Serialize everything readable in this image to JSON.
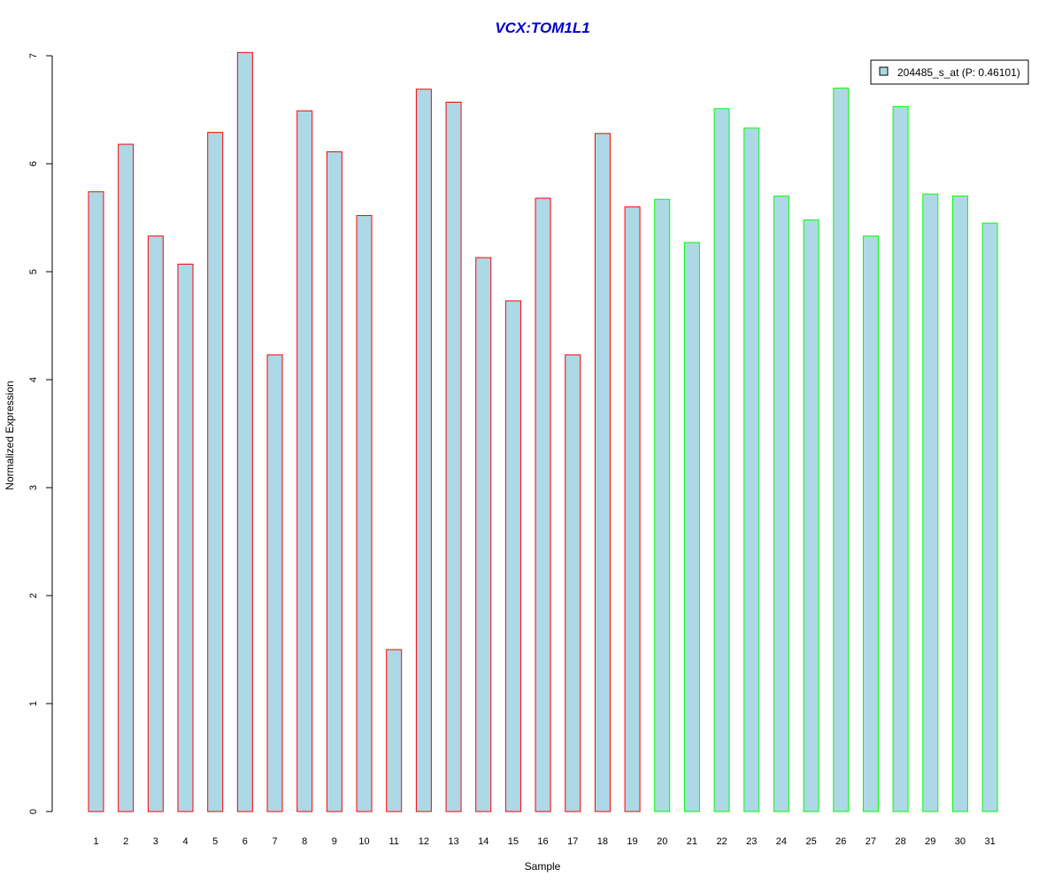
{
  "chart_data": {
    "type": "bar",
    "title": "VCX:TOM1L1",
    "xlabel": "Sample",
    "ylabel": "Normalized Expression",
    "ylim": [
      0,
      7
    ],
    "yticks": [
      0,
      1,
      2,
      3,
      4,
      5,
      6,
      7
    ],
    "grid": false,
    "legend_position": "top-right",
    "categories": [
      "1",
      "2",
      "3",
      "4",
      "5",
      "6",
      "7",
      "8",
      "9",
      "10",
      "11",
      "12",
      "13",
      "14",
      "15",
      "16",
      "17",
      "18",
      "19",
      "20",
      "21",
      "22",
      "23",
      "24",
      "25",
      "26",
      "27",
      "28",
      "29",
      "30",
      "31"
    ],
    "series": [
      {
        "name": "204485_s_at (P: 0.46101)",
        "values": [
          5.74,
          6.18,
          5.33,
          5.07,
          6.29,
          7.03,
          4.23,
          6.49,
          6.11,
          5.52,
          1.5,
          6.69,
          6.57,
          5.13,
          4.73,
          5.68,
          4.23,
          6.28,
          5.6,
          5.67,
          5.27,
          6.51,
          6.33,
          5.7,
          5.48,
          6.7,
          5.33,
          6.53,
          5.72,
          5.7,
          5.45
        ],
        "fill": "#add8e6"
      }
    ],
    "group_border_colors": [
      "#ff0000",
      "#ff0000",
      "#ff0000",
      "#ff0000",
      "#ff0000",
      "#ff0000",
      "#ff0000",
      "#ff0000",
      "#ff0000",
      "#ff0000",
      "#ff0000",
      "#ff0000",
      "#ff0000",
      "#ff0000",
      "#ff0000",
      "#ff0000",
      "#ff0000",
      "#ff0000",
      "#ff0000",
      "#00ff00",
      "#00ff00",
      "#00ff00",
      "#00ff00",
      "#00ff00",
      "#00ff00",
      "#00ff00",
      "#00ff00",
      "#00ff00",
      "#00ff00",
      "#00ff00",
      "#00ff00"
    ],
    "title_color": "#0000cd"
  }
}
